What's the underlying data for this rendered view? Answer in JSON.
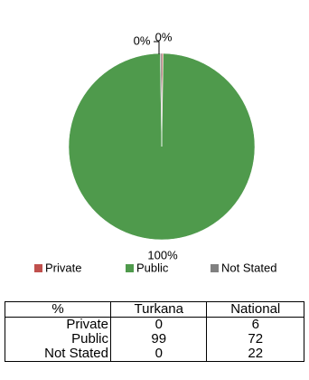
{
  "chart_data": {
    "type": "pie",
    "categories": [
      "Private",
      "Public",
      "Not Stated"
    ],
    "values": [
      0.25,
      99.5,
      0.25
    ],
    "value_labels": [
      "0%",
      "100%",
      "0%"
    ],
    "colors": [
      "#c0504d",
      "#4f9a4c",
      "#808080"
    ],
    "legend": "bottom"
  },
  "table": {
    "header": [
      "%",
      "Turkana",
      "National"
    ],
    "rows": [
      [
        "Private",
        "0",
        "6"
      ],
      [
        "Public",
        "99",
        "72"
      ],
      [
        "Not Stated",
        "0",
        "22"
      ]
    ]
  }
}
